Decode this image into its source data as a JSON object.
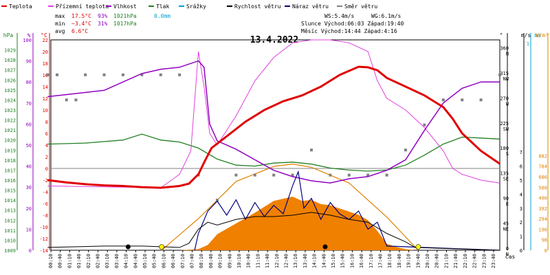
{
  "chart_data": {
    "type": "line",
    "title": "13.4.2022",
    "legend": [
      {
        "name": "Teplota",
        "color": "#e00000"
      },
      {
        "name": "Přízemní teplota",
        "color": "#e040e0"
      },
      {
        "name": "Vlhkost",
        "color": "#9000c0"
      },
      {
        "name": "Tlak",
        "color": "#208020"
      },
      {
        "name": "Srážky",
        "color": "#00a0d0"
      },
      {
        "name": "Rychlost větru",
        "color": "#000000"
      },
      {
        "name": "Náraz větru",
        "color": "#000080"
      },
      {
        "name": "Směr větru",
        "color": "#808080"
      }
    ],
    "stats": {
      "max_label": "max",
      "min_label": "min",
      "avg_label": "avg",
      "max_temp": "17.5°C",
      "max_hum": "93%",
      "max_pres": "1021hPa",
      "rain": "0.0mm",
      "min_temp": "−3.4°C",
      "min_hum": "31%",
      "min_pres": "1017hPa",
      "avg_temp": "6.6°C",
      "ws": "WS:5.4m/s",
      "wg": "WG:6.1m/s",
      "sun": "Slunce Východ:06:03  Západ:19:40",
      "moon": "Měsíc  Východ:14:44  Západ:4:16"
    },
    "axes": {
      "hpa_label": "hPa",
      "pct_label": "%",
      "c_label": "°C",
      "dir_label": "°",
      "ms_label": "m/s",
      "mm_label": "mm",
      "wm_label": "W/m²",
      "x_label": "čas",
      "hpa_ticks": [
        "1009",
        "1010",
        "1011",
        "1012",
        "1013",
        "1014",
        "1015",
        "1016",
        "1017",
        "1018",
        "1019",
        "1020",
        "1021",
        "1022",
        "1023",
        "1024",
        "1025",
        "1026",
        "1027",
        "1028",
        "1029"
      ],
      "pct_ticks": [
        "0",
        "10",
        "20",
        "30",
        "40",
        "50",
        "60",
        "70",
        "80",
        "90",
        "100"
      ],
      "temp_ticks": [
        "-14",
        "-12",
        "-10",
        "-8",
        "-6",
        "-4",
        "-2",
        "0",
        "2",
        "4",
        "6",
        "8",
        "10",
        "12",
        "14",
        "16",
        "18",
        "20",
        "22"
      ],
      "dir_ticks": [
        {
          "v": "0",
          "d": "N"
        },
        {
          "v": "45",
          "d": "NE"
        },
        {
          "v": "90",
          "d": "E"
        },
        {
          "v": "135",
          "d": "SE"
        },
        {
          "v": "180",
          "d": "S"
        },
        {
          "v": "225",
          "d": "SW"
        },
        {
          "v": "270",
          "d": "W"
        },
        {
          "v": "315",
          "d": "NW"
        },
        {
          "v": "360",
          "d": "N"
        }
      ],
      "ms_ticks": [
        "0",
        "1",
        "2",
        "3",
        "4",
        "5",
        "6",
        "7"
      ],
      "mm_top": "1",
      "wm_ticks": [
        "0",
        "98",
        "196",
        "294",
        "392",
        "490",
        "588",
        "686",
        "784",
        "882"
      ],
      "time_ticks": [
        "00:10",
        "00:40",
        "01:10",
        "01:40",
        "02:10",
        "02:40",
        "03:10",
        "03:40",
        "04:10",
        "04:40",
        "05:10",
        "05:40",
        "06:10",
        "06:40",
        "07:10",
        "07:40",
        "08:10",
        "08:40",
        "09:10",
        "09:40",
        "10:10",
        "10:40",
        "11:10",
        "11:40",
        "12:10",
        "12:40",
        "13:10",
        "13:40",
        "14:10",
        "14:40",
        "15:10",
        "15:40",
        "16:10",
        "16:40",
        "17:10",
        "17:40",
        "18:10",
        "18:40",
        "19:10",
        "19:40",
        "20:10",
        "20:40",
        "21:10",
        "21:40",
        "22:10",
        "22:40",
        "23:10",
        "23:40"
      ]
    },
    "temperature": [
      [
        0,
        -2
      ],
      [
        1,
        -2.4
      ],
      [
        2,
        -2.7
      ],
      [
        3,
        -2.9
      ],
      [
        4,
        -3
      ],
      [
        5,
        -3.2
      ],
      [
        6,
        -3.3
      ],
      [
        7,
        -3
      ],
      [
        7.5,
        -2.6
      ],
      [
        8,
        -1
      ],
      [
        8.3,
        1
      ],
      [
        8.7,
        3.5
      ],
      [
        9.5,
        5.5
      ],
      [
        10.5,
        8
      ],
      [
        11.5,
        10
      ],
      [
        12.5,
        11.5
      ],
      [
        13.5,
        12.5
      ],
      [
        14.5,
        14
      ],
      [
        15.5,
        16
      ],
      [
        16.5,
        17.4
      ],
      [
        17,
        17.3
      ],
      [
        17.5,
        16.8
      ],
      [
        18,
        15.5
      ],
      [
        19,
        14
      ],
      [
        20,
        12.5
      ],
      [
        21,
        10.5
      ],
      [
        21.5,
        8.5
      ],
      [
        22,
        6
      ],
      [
        23,
        3
      ],
      [
        24,
        0.8
      ]
    ],
    "ground_temp": [
      [
        0,
        -3
      ],
      [
        6,
        -3.3
      ],
      [
        7,
        -1
      ],
      [
        7.6,
        3
      ],
      [
        8,
        20
      ],
      [
        8.3,
        14
      ],
      [
        8.6,
        6
      ],
      [
        9,
        4
      ],
      [
        10,
        9
      ],
      [
        11,
        15
      ],
      [
        12,
        19
      ],
      [
        13,
        21.5
      ],
      [
        14,
        22
      ],
      [
        15,
        22
      ],
      [
        16,
        21.5
      ],
      [
        17,
        20
      ],
      [
        17.5,
        15
      ],
      [
        18,
        12
      ],
      [
        19,
        10
      ],
      [
        20,
        7
      ],
      [
        21,
        3
      ],
      [
        21.5,
        0
      ],
      [
        22,
        -1
      ],
      [
        23,
        -2
      ],
      [
        24,
        -2.5
      ]
    ],
    "humidity": [
      [
        0,
        73
      ],
      [
        2,
        75
      ],
      [
        3,
        76
      ],
      [
        4,
        80
      ],
      [
        5,
        84
      ],
      [
        6,
        86
      ],
      [
        7,
        87
      ],
      [
        8,
        90
      ],
      [
        8.3,
        87
      ],
      [
        8.6,
        60
      ],
      [
        9,
        52
      ],
      [
        10,
        48
      ],
      [
        11,
        43
      ],
      [
        12,
        38
      ],
      [
        13,
        35
      ],
      [
        14,
        33
      ],
      [
        15,
        32
      ],
      [
        16,
        34
      ],
      [
        17,
        35
      ],
      [
        18,
        38
      ],
      [
        19,
        43
      ],
      [
        20,
        57
      ],
      [
        21,
        70
      ],
      [
        22,
        77
      ],
      [
        23,
        80
      ],
      [
        24,
        80
      ]
    ],
    "pressure": [
      [
        0,
        1019.6
      ],
      [
        2,
        1019.7
      ],
      [
        4,
        1020.0
      ],
      [
        5,
        1020.6
      ],
      [
        6,
        1020.0
      ],
      [
        7,
        1019.8
      ],
      [
        8,
        1019.2
      ],
      [
        9,
        1018.1
      ],
      [
        10,
        1017.5
      ],
      [
        11,
        1017.4
      ],
      [
        12,
        1017.7
      ],
      [
        13,
        1017.8
      ],
      [
        14,
        1017.6
      ],
      [
        15,
        1017.2
      ],
      [
        16,
        1017.0
      ],
      [
        17,
        1016.9
      ],
      [
        18,
        1017.0
      ],
      [
        19,
        1017.5
      ],
      [
        20,
        1018.5
      ],
      [
        21,
        1019.6
      ],
      [
        22,
        1020.3
      ],
      [
        23,
        1020.2
      ],
      [
        24,
        1020.1
      ]
    ],
    "wind_speed": [
      [
        0,
        0.2
      ],
      [
        3,
        0.3
      ],
      [
        5,
        0.3
      ],
      [
        7,
        0.2
      ],
      [
        7.5,
        0.5
      ],
      [
        8,
        1.5
      ],
      [
        8.5,
        2
      ],
      [
        9,
        1.8
      ],
      [
        10,
        2.2
      ],
      [
        11,
        2.4
      ],
      [
        12,
        2.4
      ],
      [
        13,
        2.5
      ],
      [
        14,
        2.7
      ],
      [
        15,
        2.5
      ],
      [
        16,
        2.2
      ],
      [
        17,
        2
      ],
      [
        18,
        1.2
      ],
      [
        19,
        0.6
      ],
      [
        19.5,
        0.2
      ],
      [
        24,
        0
      ]
    ],
    "wind_gust": [
      [
        7.8,
        0
      ],
      [
        8,
        1.2
      ],
      [
        8.5,
        2.8
      ],
      [
        9,
        3.5
      ],
      [
        9.5,
        2.5
      ],
      [
        10,
        3.6
      ],
      [
        10.5,
        2.2
      ],
      [
        11,
        3.4
      ],
      [
        11.5,
        2.4
      ],
      [
        12,
        3.2
      ],
      [
        12.5,
        2.6
      ],
      [
        13,
        4.6
      ],
      [
        13.3,
        5.6
      ],
      [
        13.6,
        3
      ],
      [
        14,
        3.7
      ],
      [
        14.5,
        2.2
      ],
      [
        15,
        3.4
      ],
      [
        15.5,
        2.6
      ],
      [
        16,
        2.2
      ],
      [
        16.5,
        2.8
      ],
      [
        17,
        1.5
      ],
      [
        17.5,
        2
      ],
      [
        18,
        0.3
      ],
      [
        24,
        0
      ]
    ],
    "solar": [
      [
        7,
        0
      ],
      [
        8,
        10
      ],
      [
        8.5,
        50
      ],
      [
        9,
        150
      ],
      [
        10,
        250
      ],
      [
        11,
        350
      ],
      [
        12,
        460
      ],
      [
        12.5,
        480
      ],
      [
        13,
        500
      ],
      [
        13.5,
        460
      ],
      [
        14,
        470
      ],
      [
        14.5,
        430
      ],
      [
        15,
        420
      ],
      [
        15.5,
        390
      ],
      [
        16,
        360
      ],
      [
        16.5,
        330
      ],
      [
        17,
        280
      ],
      [
        17.5,
        180
      ],
      [
        18,
        60
      ],
      [
        18.5,
        30
      ],
      [
        19,
        10
      ],
      [
        19.5,
        0
      ]
    ],
    "sun_elev": [
      [
        6.05,
        0
      ],
      [
        8,
        4
      ],
      [
        10,
        8.7
      ],
      [
        12,
        10.6
      ],
      [
        13,
        10.9
      ],
      [
        14,
        10.5
      ],
      [
        16,
        8.5
      ],
      [
        18,
        4.2
      ],
      [
        19.67,
        0
      ]
    ],
    "wind_dir": [
      [
        0,
        315
      ],
      [
        0.5,
        315
      ],
      [
        1,
        270
      ],
      [
        1.5,
        270
      ],
      [
        2,
        315
      ],
      [
        3,
        315
      ],
      [
        4,
        315
      ],
      [
        5,
        315
      ],
      [
        6,
        315
      ],
      [
        7,
        315
      ],
      [
        8,
        135
      ],
      [
        9,
        90
      ],
      [
        10,
        135
      ],
      [
        11,
        135
      ],
      [
        12,
        135
      ],
      [
        13,
        135
      ],
      [
        14,
        180
      ],
      [
        15,
        135
      ],
      [
        16,
        135
      ],
      [
        17,
        135
      ],
      [
        18,
        135
      ],
      [
        19,
        180
      ],
      [
        20,
        225
      ],
      [
        21,
        270
      ],
      [
        22,
        270
      ],
      [
        23,
        270
      ],
      [
        24,
        315
      ]
    ],
    "markers": {
      "moonset_h": 4.27,
      "sunrise_h": 6.05,
      "moonrise_h": 14.73,
      "sunset_h": 19.67
    }
  }
}
